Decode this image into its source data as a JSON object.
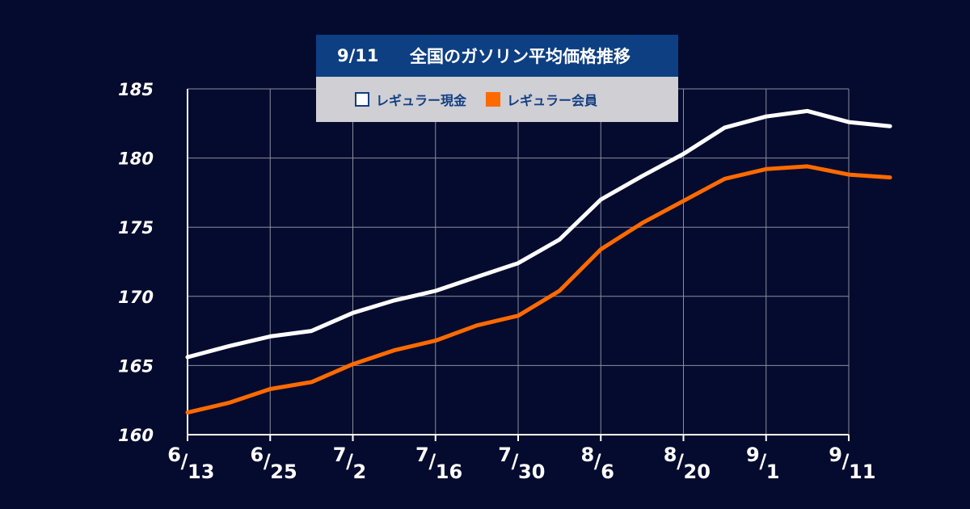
{
  "chart_data": {
    "type": "line",
    "title_date": "9/11",
    "title": "全国のガソリン平均価格推移",
    "categories": [
      "6/13",
      "6/25",
      "7/2",
      "7/16",
      "7/30",
      "8/6",
      "8/20",
      "9/1",
      "9/11"
    ],
    "x_ticks": [
      {
        "main": "6",
        "sub": "13"
      },
      {
        "main": "6",
        "sub": "25"
      },
      {
        "main": "7",
        "sub": "2"
      },
      {
        "main": "7",
        "sub": "16"
      },
      {
        "main": "7",
        "sub": "30"
      },
      {
        "main": "8",
        "sub": "6"
      },
      {
        "main": "8",
        "sub": "20"
      },
      {
        "main": "9",
        "sub": "1"
      },
      {
        "main": "9",
        "sub": "11"
      }
    ],
    "ylim": [
      160,
      185
    ],
    "y_ticks": [
      160,
      165,
      170,
      175,
      180,
      185
    ],
    "grid": true,
    "legend": "top",
    "series": [
      {
        "name": "レギュラー現金",
        "color": "#ffffff",
        "x": [
          0,
          0.5,
          1,
          1.5,
          2,
          2.5,
          3,
          3.5,
          4,
          4.5,
          5,
          5.5,
          6,
          6.5,
          7,
          7.5,
          8,
          8.5
        ],
        "values": [
          165.6,
          166.4,
          167.1,
          167.5,
          168.8,
          169.7,
          170.4,
          171.4,
          172.4,
          174.1,
          177.0,
          178.7,
          180.3,
          182.2,
          183.0,
          183.4,
          182.6,
          182.3
        ]
      },
      {
        "name": "レギュラー会員",
        "color": "#ff6a00",
        "x": [
          0,
          0.5,
          1,
          1.5,
          2,
          2.5,
          3,
          3.5,
          4,
          4.5,
          5,
          5.5,
          6,
          6.5,
          7,
          7.5,
          8,
          8.5
        ],
        "values": [
          161.6,
          162.3,
          163.3,
          163.8,
          165.1,
          166.1,
          166.8,
          167.9,
          168.6,
          170.4,
          173.4,
          175.3,
          176.9,
          178.5,
          179.2,
          179.4,
          178.8,
          178.6
        ]
      }
    ]
  }
}
